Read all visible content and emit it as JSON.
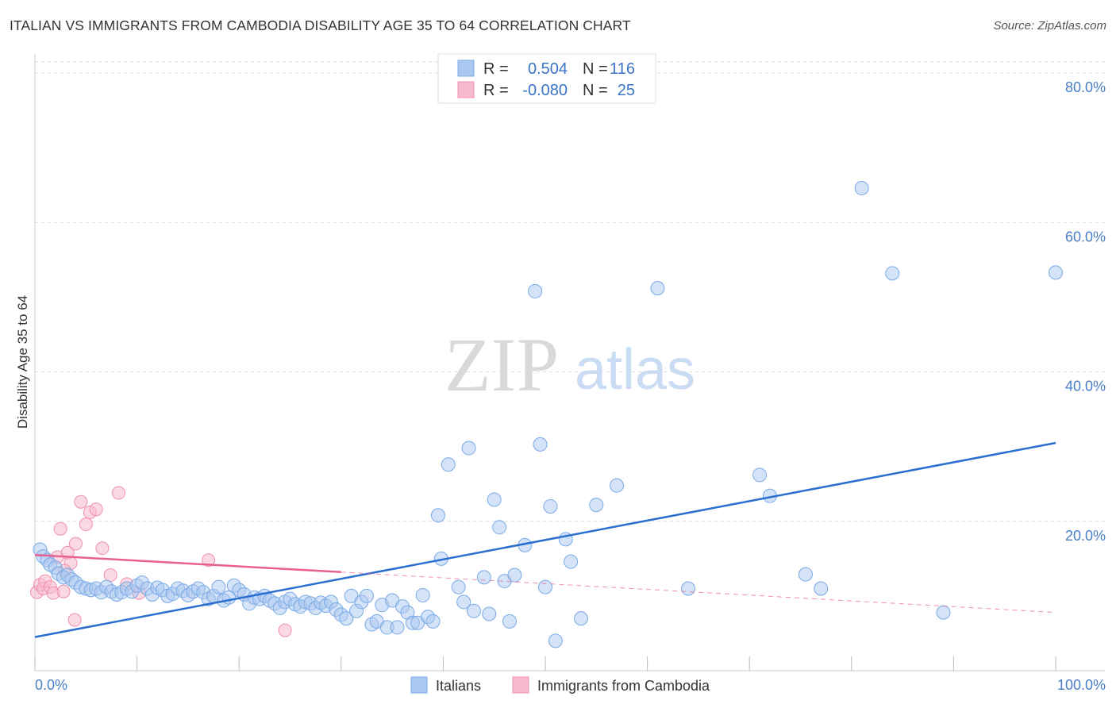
{
  "title": "ITALIAN VS IMMIGRANTS FROM CAMBODIA DISABILITY AGE 35 TO 64 CORRELATION CHART",
  "source": "Source: ZipAtlas.com",
  "watermark": {
    "zip": "ZIP",
    "atlas": "atlas"
  },
  "chart_data": {
    "type": "scatter",
    "ylabel": "Disability Age 35 to 64",
    "xlim": [
      0,
      100
    ],
    "ylim": [
      0,
      80
    ],
    "x_ticks": [
      "0.0%",
      "100.0%"
    ],
    "y_ticks": [
      {
        "value": 20,
        "label": "20.0%"
      },
      {
        "value": 40,
        "label": "40.0%"
      },
      {
        "value": 60,
        "label": "60.0%"
      },
      {
        "value": 80,
        "label": "80.0%"
      }
    ],
    "legend": {
      "rows": [
        {
          "r_label": "R =",
          "r_value": "0.504",
          "n_label": "N =",
          "n_value": "116",
          "color": "#a9c8f0"
        },
        {
          "r_label": "R =",
          "r_value": "-0.080",
          "n_label": "N =",
          "n_value": "25",
          "color": "#f7b9cc"
        }
      ]
    },
    "series": [
      {
        "name": "Italians",
        "color": "#7aaae6",
        "line_color": "#2a6fd0",
        "trend": {
          "x": [
            0,
            100
          ],
          "y": [
            4.5,
            30.5
          ]
        },
        "points": [
          [
            0.5,
            16.2
          ],
          [
            0.8,
            15.3
          ],
          [
            1.2,
            14.8
          ],
          [
            1.5,
            14.2
          ],
          [
            2.0,
            13.8
          ],
          [
            2.3,
            13.0
          ],
          [
            2.8,
            12.5
          ],
          [
            3.2,
            12.8
          ],
          [
            3.6,
            12.2
          ],
          [
            4.0,
            11.8
          ],
          [
            4.5,
            11.2
          ],
          [
            5.0,
            11.0
          ],
          [
            5.5,
            10.8
          ],
          [
            6.0,
            11.0
          ],
          [
            6.5,
            10.5
          ],
          [
            7.0,
            11.2
          ],
          [
            7.5,
            10.6
          ],
          [
            8.0,
            10.2
          ],
          [
            8.5,
            10.5
          ],
          [
            9.0,
            11.0
          ],
          [
            9.5,
            10.6
          ],
          [
            10.0,
            11.4
          ],
          [
            10.5,
            11.8
          ],
          [
            11.0,
            11.0
          ],
          [
            11.5,
            10.2
          ],
          [
            12.0,
            11.1
          ],
          [
            12.5,
            10.8
          ],
          [
            13.0,
            10.0
          ],
          [
            13.5,
            10.3
          ],
          [
            14.0,
            11.0
          ],
          [
            14.5,
            10.7
          ],
          [
            15.0,
            10.1
          ],
          [
            15.5,
            10.6
          ],
          [
            16.0,
            11.0
          ],
          [
            16.5,
            10.5
          ],
          [
            17.0,
            9.6
          ],
          [
            17.5,
            10.0
          ],
          [
            18.0,
            11.2
          ],
          [
            18.5,
            9.4
          ],
          [
            19.0,
            9.8
          ],
          [
            19.5,
            11.4
          ],
          [
            20.0,
            10.8
          ],
          [
            20.5,
            10.2
          ],
          [
            21.0,
            9.0
          ],
          [
            21.5,
            9.8
          ],
          [
            22.0,
            9.6
          ],
          [
            22.5,
            10.0
          ],
          [
            23.0,
            9.4
          ],
          [
            23.5,
            9.0
          ],
          [
            24.0,
            8.4
          ],
          [
            24.5,
            9.2
          ],
          [
            25.0,
            9.6
          ],
          [
            25.5,
            8.9
          ],
          [
            26.0,
            8.6
          ],
          [
            26.5,
            9.2
          ],
          [
            27.0,
            9.0
          ],
          [
            27.5,
            8.4
          ],
          [
            28.0,
            9.1
          ],
          [
            28.5,
            8.7
          ],
          [
            29.0,
            9.2
          ],
          [
            29.5,
            8.2
          ],
          [
            30.0,
            7.5
          ],
          [
            30.5,
            7.0
          ],
          [
            31.0,
            10.0
          ],
          [
            31.5,
            8.0
          ],
          [
            32.0,
            9.2
          ],
          [
            32.5,
            10.0
          ],
          [
            33.0,
            6.2
          ],
          [
            33.5,
            6.6
          ],
          [
            34.0,
            8.8
          ],
          [
            34.5,
            5.8
          ],
          [
            35.0,
            9.4
          ],
          [
            35.5,
            5.8
          ],
          [
            36.0,
            8.6
          ],
          [
            36.5,
            7.8
          ],
          [
            37.0,
            6.4
          ],
          [
            37.5,
            6.4
          ],
          [
            38.0,
            10.1
          ],
          [
            38.5,
            7.2
          ],
          [
            39.0,
            6.6
          ],
          [
            39.5,
            20.8
          ],
          [
            39.8,
            15.0
          ],
          [
            40.5,
            27.6
          ],
          [
            41.5,
            11.2
          ],
          [
            42.0,
            9.2
          ],
          [
            42.5,
            29.8
          ],
          [
            43.0,
            8.0
          ],
          [
            44.0,
            12.5
          ],
          [
            44.5,
            7.6
          ],
          [
            45.0,
            22.9
          ],
          [
            45.5,
            19.2
          ],
          [
            46.0,
            12.0
          ],
          [
            46.5,
            6.6
          ],
          [
            47.0,
            12.8
          ],
          [
            48.0,
            16.8
          ],
          [
            49.0,
            50.8
          ],
          [
            49.5,
            30.3
          ],
          [
            50.0,
            11.2
          ],
          [
            50.5,
            22.0
          ],
          [
            51.0,
            4.0
          ],
          [
            52.0,
            17.6
          ],
          [
            52.5,
            14.6
          ],
          [
            53.5,
            7.0
          ],
          [
            55.0,
            22.2
          ],
          [
            57.0,
            24.8
          ],
          [
            61.0,
            51.2
          ],
          [
            64.0,
            11.0
          ],
          [
            71.0,
            26.2
          ],
          [
            72.0,
            23.4
          ],
          [
            75.5,
            12.9
          ],
          [
            77.0,
            11.0
          ],
          [
            81.0,
            64.6
          ],
          [
            84.0,
            53.2
          ],
          [
            89.0,
            7.8
          ],
          [
            100.0,
            53.3
          ]
        ]
      },
      {
        "name": "Immigrants from Cambodia",
        "color": "#f08fb0",
        "line_color": "#e8608f",
        "trend_solid": {
          "x": [
            0,
            30
          ],
          "y": [
            15.5,
            13.2
          ]
        },
        "trend_dashed": {
          "x": [
            30,
            100
          ],
          "y": [
            13.2,
            7.8
          ]
        },
        "points": [
          [
            0.2,
            10.5
          ],
          [
            0.5,
            11.5
          ],
          [
            0.8,
            11.0
          ],
          [
            1.0,
            12.0
          ],
          [
            1.5,
            11.2
          ],
          [
            1.8,
            10.4
          ],
          [
            2.2,
            15.2
          ],
          [
            2.5,
            19.0
          ],
          [
            2.8,
            10.6
          ],
          [
            3.2,
            15.8
          ],
          [
            3.5,
            14.4
          ],
          [
            4.0,
            17.0
          ],
          [
            4.5,
            22.6
          ],
          [
            5.0,
            19.6
          ],
          [
            5.4,
            21.2
          ],
          [
            6.0,
            21.6
          ],
          [
            6.6,
            16.4
          ],
          [
            7.4,
            12.8
          ],
          [
            8.2,
            23.8
          ],
          [
            9.0,
            11.6
          ],
          [
            10.2,
            10.4
          ],
          [
            17.0,
            14.8
          ],
          [
            24.5,
            5.4
          ],
          [
            3.9,
            6.8
          ],
          [
            2.9,
            13.4
          ]
        ]
      }
    ]
  },
  "bottom_legend": [
    {
      "label": "Italians",
      "color": "#a9c8f0"
    },
    {
      "label": "Immigrants from Cambodia",
      "color": "#f7b9cc"
    }
  ]
}
